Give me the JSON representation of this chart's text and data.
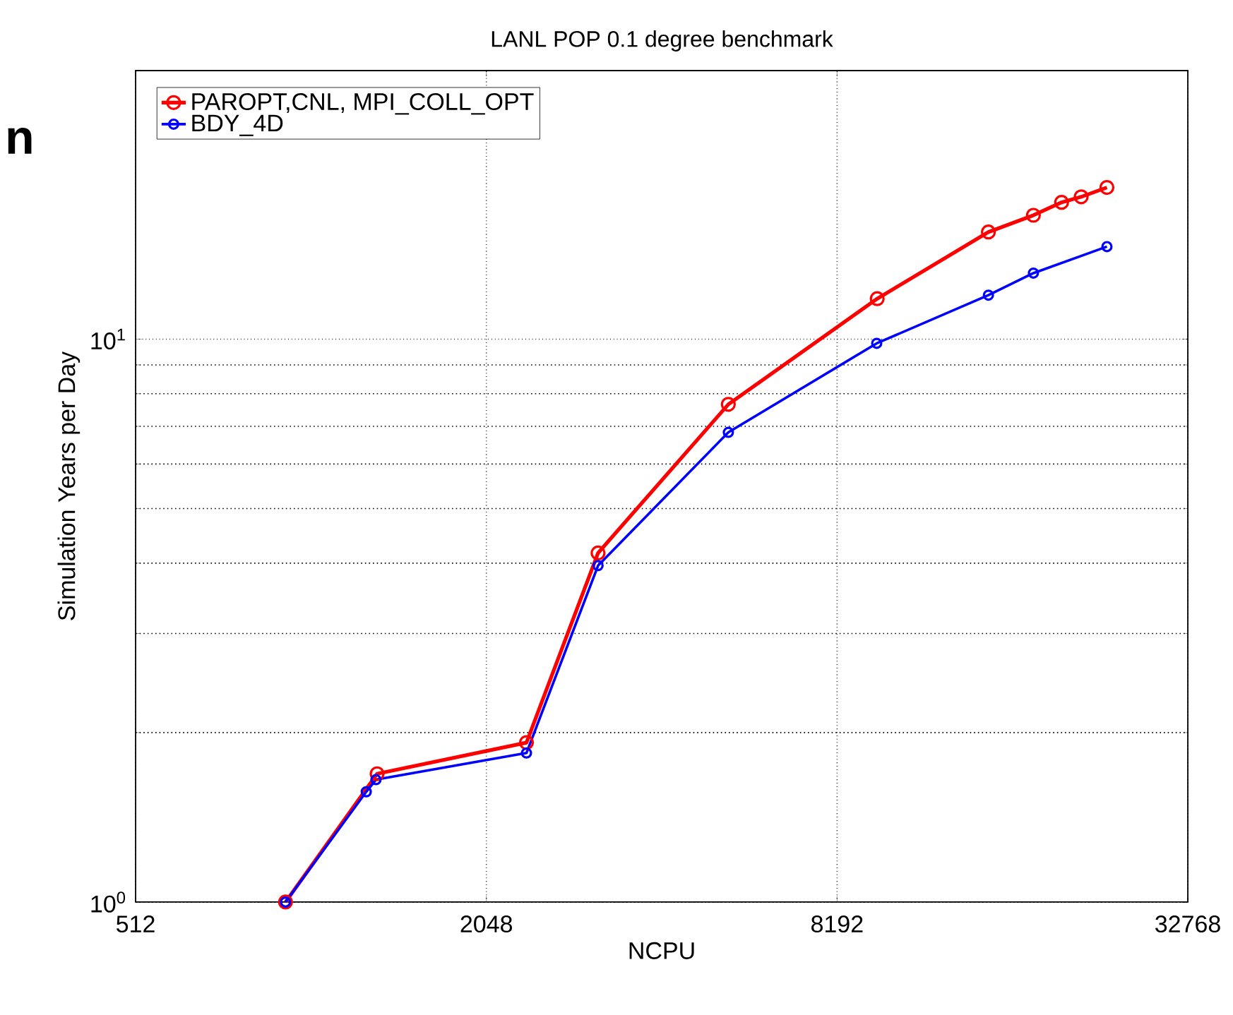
{
  "chart_data": {
    "type": "line",
    "title": "LANL POP 0.1 degree benchmark",
    "xlabel": "NCPU",
    "ylabel": "Simulation Years per Day",
    "annotations": [
      "n"
    ],
    "log": "xy",
    "grid": true,
    "legend": "top left",
    "marker": "circle",
    "line_style": "solid",
    "xlim": [
      512,
      32768
    ],
    "xticks": [
      512,
      2048,
      8192,
      32768
    ],
    "ylim": [
      1,
      30
    ],
    "yticks": [
      {
        "value": 1,
        "label": "10$^{0}$"
      },
      {
        "value": 10,
        "label": "10$^{1}$"
      }
    ],
    "series": [
      {
        "name": "PAROPT,CNL, MPI_COLL_OPT",
        "color": "#ff0000",
        "x": [
          926,
          1330,
          2400,
          3185,
          5330,
          9600,
          14900,
          17800,
          19900,
          21500,
          23800
        ],
        "values": [
          1.0,
          1.69,
          1.92,
          4.17,
          7.66,
          11.8,
          15.5,
          16.6,
          17.5,
          17.9,
          18.6
        ]
      },
      {
        "name": "BDY_4D",
        "color": "#0000ff",
        "x": [
          926,
          1274,
          1324,
          2400,
          3185,
          5330,
          9580,
          14900,
          17800,
          23800
        ],
        "values": [
          1.0,
          1.57,
          1.65,
          1.84,
          3.96,
          6.83,
          9.83,
          11.97,
          13.1,
          14.6
        ]
      }
    ]
  }
}
